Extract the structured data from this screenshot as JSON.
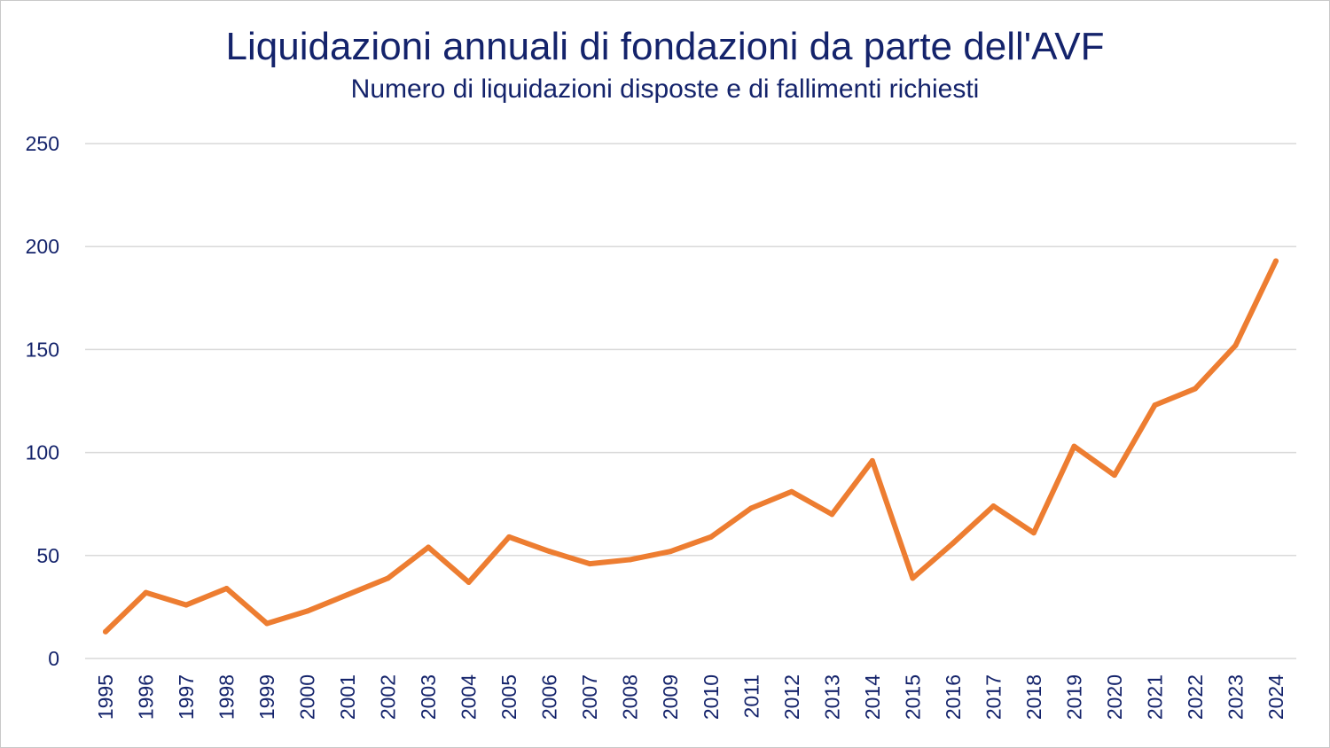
{
  "chart_data": {
    "type": "line",
    "title": "Liquidazioni annuali di fondazioni da parte dell'AVF",
    "subtitle": "Numero di liquidazioni disposte e di fallimenti richiesti",
    "xlabel": "",
    "ylabel": "",
    "ylim": [
      0,
      250
    ],
    "yticks": [
      "0",
      "50",
      "100",
      "150",
      "200",
      "250"
    ],
    "grid": true,
    "categories": [
      "1995",
      "1996",
      "1997",
      "1998",
      "1999",
      "2000",
      "2001",
      "2002",
      "2003",
      "2004",
      "2005",
      "2006",
      "2007",
      "2008",
      "2009",
      "2010",
      "2011",
      "2012",
      "2013",
      "2014",
      "2015",
      "2016",
      "2017",
      "2018",
      "2019",
      "2020",
      "2021",
      "2022",
      "2023",
      "2024"
    ],
    "series": [
      {
        "name": "Liquidazioni",
        "color": "#ed7d31",
        "values": [
          13,
          32,
          26,
          34,
          17,
          23,
          31,
          39,
          54,
          37,
          59,
          52,
          46,
          48,
          52,
          59,
          73,
          81,
          70,
          96,
          39,
          56,
          74,
          61,
          103,
          89,
          123,
          131,
          152,
          193
        ]
      }
    ]
  },
  "colors": {
    "text": "#14236b",
    "grid": "#d9d9d9",
    "line": "#ed7d31"
  }
}
